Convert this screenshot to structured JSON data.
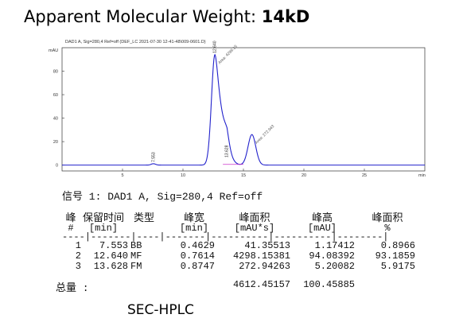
{
  "header": {
    "label": "Apparent Molecular Weight:",
    "value": "14kD"
  },
  "chart_data": {
    "type": "line",
    "title": "DAD1 A, Sig=280,4 Ref=off (DEF_LC 2021-07-30 12-41-48\\009-0601.D)",
    "ylabel": "mAU",
    "xlabel": "min",
    "xlim": [
      0,
      30
    ],
    "ylim": [
      -5,
      100
    ],
    "x_ticks": [
      "5",
      "10",
      "15",
      "20",
      "25"
    ],
    "y_ticks": [
      "80",
      "60",
      "40",
      "20",
      "0"
    ],
    "peaks": [
      {
        "rt": 7.553,
        "height": 1.17412,
        "label": "7.553"
      },
      {
        "rt": 12.64,
        "height": 94.08392,
        "label": "12.640",
        "annotation": "Area: 4298.15"
      },
      {
        "rt": 13.628,
        "height": 5.20082,
        "label": "13.628"
      },
      {
        "rt": 15.7,
        "height": 26.0,
        "label": "",
        "annotation": "Area: 272.943"
      }
    ],
    "grid": false
  },
  "signal_line": "信号 1: DAD1 A, Sig=280,4 Ref=off",
  "table": {
    "headers": [
      "峰",
      "保留时间",
      "类型",
      "峰宽",
      "峰面积",
      "峰高",
      "峰面积"
    ],
    "units": [
      "#",
      "[min]",
      "",
      "[min]",
      "[mAU*s]",
      "[mAU]",
      "%"
    ],
    "rows": [
      [
        "1",
        "7.553",
        "BB",
        "0.4629",
        "41.35513",
        "1.17412",
        "0.8966"
      ],
      [
        "2",
        "12.640",
        "MF",
        "0.7614",
        "4298.15381",
        "94.08392",
        "93.1859"
      ],
      [
        "3",
        "13.628",
        "FM",
        "0.8747",
        "272.94263",
        "5.20082",
        "5.9175"
      ]
    ],
    "total_label": "总量 :",
    "total_area": "4612.45157",
    "total_height": "100.45885"
  },
  "caption": "SEC-HPLC"
}
